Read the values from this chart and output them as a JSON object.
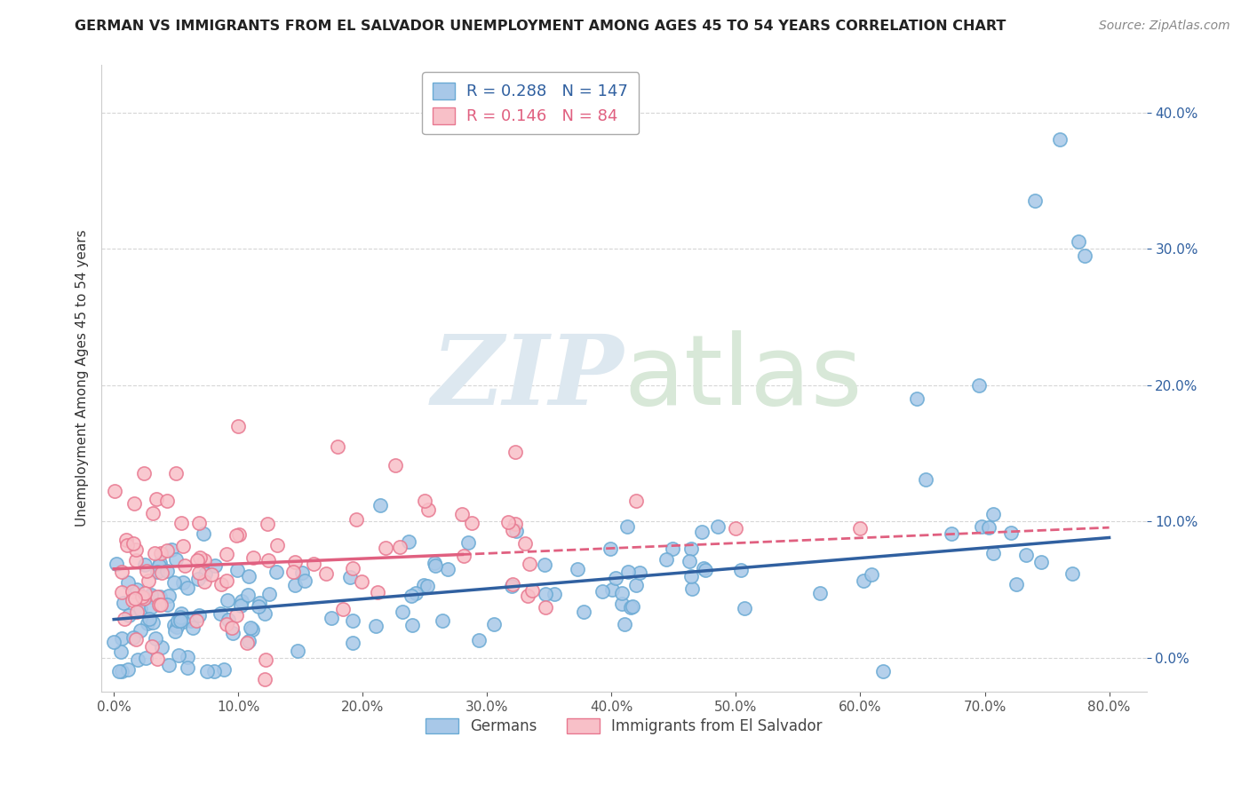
{
  "title": "GERMAN VS IMMIGRANTS FROM EL SALVADOR UNEMPLOYMENT AMONG AGES 45 TO 54 YEARS CORRELATION CHART",
  "source": "Source: ZipAtlas.com",
  "ylabel": "Unemployment Among Ages 45 to 54 years",
  "xlim": [
    -0.01,
    0.83
  ],
  "ylim": [
    -0.025,
    0.435
  ],
  "yticks": [
    0.0,
    0.1,
    0.2,
    0.3,
    0.4
  ],
  "ytick_labels": [
    "0.0%",
    "10.0%",
    "20.0%",
    "30.0%",
    "40.0%"
  ],
  "xticks": [
    0.0,
    0.1,
    0.2,
    0.3,
    0.4,
    0.5,
    0.6,
    0.7,
    0.8
  ],
  "xtick_labels": [
    "0.0%",
    "10.0%",
    "20.0%",
    "30.0%",
    "40.0%",
    "50.0%",
    "60.0%",
    "70.0%",
    "80.0%"
  ],
  "blue_color": "#a8c8e8",
  "blue_edge_color": "#6aaad4",
  "pink_color": "#f8c0c8",
  "pink_edge_color": "#e87890",
  "blue_R": 0.288,
  "blue_N": 147,
  "pink_R": 0.146,
  "pink_N": 84,
  "watermark_zip": "ZIP",
  "watermark_atlas": "atlas",
  "legend_labels": [
    "Germans",
    "Immigrants from El Salvador"
  ],
  "blue_line_color": "#3060a0",
  "pink_line_color": "#e06080",
  "blue_line_slope": 0.075,
  "blue_line_intercept": 0.028,
  "pink_line_slope": 0.038,
  "pink_line_intercept": 0.065,
  "background_color": "#ffffff",
  "grid_color": "#cccccc"
}
